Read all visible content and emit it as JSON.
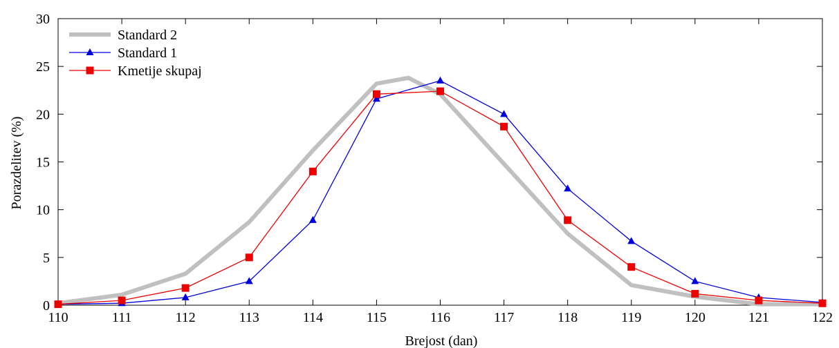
{
  "chart_data": {
    "type": "line",
    "xlabel": "Brejost (dan)",
    "ylabel": "Porazdelitev (%)",
    "xlim": [
      110,
      122
    ],
    "ylim": [
      0,
      30
    ],
    "x_ticks": [
      110,
      111,
      112,
      113,
      114,
      115,
      116,
      117,
      118,
      119,
      120,
      121,
      122
    ],
    "y_ticks": [
      0,
      5,
      10,
      15,
      20,
      25,
      30
    ],
    "grid": false,
    "legend_position": "top-left",
    "series": [
      {
        "name": "Standard 2",
        "color": "#c0c0c0",
        "marker": "none",
        "x": [
          110,
          111,
          112,
          113,
          114,
          115,
          115.5,
          116,
          117,
          118,
          119,
          120,
          121,
          122
        ],
        "y": [
          0.2,
          1.1,
          3.3,
          8.7,
          16.2,
          23.2,
          23.8,
          22.1,
          14.8,
          7.5,
          2.1,
          0.9,
          0.1,
          0.1
        ]
      },
      {
        "name": "Standard 1",
        "color": "#0000dd",
        "marker": "triangle",
        "x": [
          110,
          111,
          112,
          113,
          114,
          115,
          116,
          117,
          118,
          119,
          120,
          121,
          122
        ],
        "y": [
          0.1,
          0.2,
          0.8,
          2.5,
          8.9,
          21.6,
          23.5,
          20.0,
          12.2,
          6.7,
          2.5,
          0.8,
          0.3
        ]
      },
      {
        "name": "Kmetije skupaj",
        "color": "#ee0000",
        "marker": "square",
        "x": [
          110,
          111,
          112,
          113,
          114,
          115,
          116,
          117,
          118,
          119,
          120,
          121,
          122
        ],
        "y": [
          0.1,
          0.5,
          1.8,
          5.0,
          14.0,
          22.1,
          22.4,
          18.7,
          8.9,
          4.0,
          1.2,
          0.5,
          0.2
        ]
      }
    ]
  }
}
